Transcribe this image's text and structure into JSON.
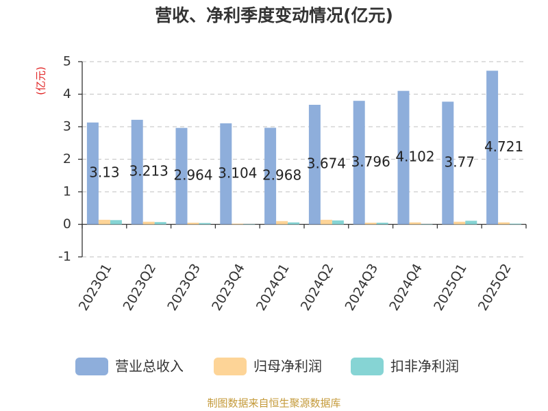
{
  "chart_data": {
    "type": "bar",
    "title": "营收、净利季度变动情况(亿元)",
    "y_label": "(亿元)",
    "categories": [
      "2023Q1",
      "2023Q2",
      "2023Q3",
      "2023Q4",
      "2024Q1",
      "2024Q2",
      "2024Q3",
      "2024Q4",
      "2025Q1",
      "2025Q2"
    ],
    "series": [
      {
        "name": "营业总收入",
        "color": "#8eaedb",
        "values": [
          3.13,
          3.213,
          2.964,
          3.104,
          2.968,
          3.674,
          3.796,
          4.102,
          3.77,
          4.721
        ]
      },
      {
        "name": "归母净利润",
        "color": "#fdd497",
        "values": [
          0.14,
          0.08,
          0.05,
          0.02,
          0.1,
          0.14,
          0.05,
          0.06,
          0.08,
          0.06
        ]
      },
      {
        "name": "扣非净利润",
        "color": "#86d4d4",
        "values": [
          0.13,
          0.07,
          0.04,
          0.01,
          0.06,
          0.12,
          0.05,
          0.01,
          0.11,
          0.02
        ]
      }
    ],
    "data_labels_series": 0,
    "ylim": [
      -1,
      5
    ],
    "yticks": [
      -1,
      0,
      1,
      2,
      3,
      4,
      5
    ],
    "grid": true,
    "legend": "bottom",
    "source": "制图数据来自恒生聚源数据库"
  }
}
